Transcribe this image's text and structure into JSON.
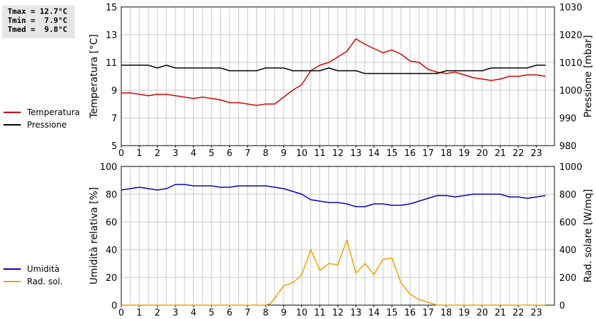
{
  "stats": {
    "tmax": "Tmax = 12.7°C",
    "tmin": "Tmin =  7.9°C",
    "tmed": "Tmed =  9.8°C"
  },
  "colors": {
    "temperatura": "#d40000",
    "pressione": "#000000",
    "umidita": "#0000b4",
    "rad_sol": "#f0a000",
    "grid": "#c8c8c8"
  },
  "chart_data": [
    {
      "type": "line",
      "xlim": [
        0,
        24
      ],
      "x_ticks": [
        "0",
        "1",
        "2",
        "3",
        "4",
        "5",
        "6",
        "7",
        "8",
        "9",
        "10",
        "11",
        "12",
        "13",
        "14",
        "15",
        "16",
        "17",
        "18",
        "19",
        "20",
        "21",
        "22",
        "23"
      ],
      "ylabel_left": "Temperatura [°C]",
      "ylabel_right": "Pressione [mbar]",
      "ylim_left": [
        5,
        15
      ],
      "ylim_right": [
        980,
        1030
      ],
      "yticks_left": [
        "5",
        "7",
        "9",
        "11",
        "13",
        "15"
      ],
      "yticks_right": [
        "980",
        "990",
        "1000",
        "1010",
        "1020",
        "1030"
      ],
      "grid": true,
      "legend_position": "left",
      "series": [
        {
          "name": "Temperatura",
          "axis": "left",
          "x": [
            0,
            0.5,
            1,
            1.5,
            2,
            2.5,
            3,
            3.5,
            4,
            4.5,
            5,
            5.5,
            6,
            6.5,
            7,
            7.5,
            8,
            8.5,
            9,
            9.5,
            10,
            10.5,
            11,
            11.5,
            12,
            12.5,
            13,
            13.5,
            14,
            14.5,
            15,
            15.5,
            16,
            16.5,
            17,
            17.5,
            18,
            18.5,
            19,
            19.5,
            20,
            20.5,
            21,
            21.5,
            22,
            22.5,
            23,
            23.5
          ],
          "values": [
            8.8,
            8.8,
            8.7,
            8.6,
            8.7,
            8.7,
            8.6,
            8.5,
            8.4,
            8.5,
            8.4,
            8.3,
            8.1,
            8.1,
            8.0,
            7.9,
            8.0,
            8.0,
            8.5,
            9.0,
            9.4,
            10.4,
            10.8,
            11.0,
            11.4,
            11.8,
            12.7,
            12.3,
            12.0,
            11.7,
            11.9,
            11.6,
            11.1,
            11.0,
            10.5,
            10.3,
            10.2,
            10.3,
            10.1,
            9.9,
            9.8,
            9.7,
            9.8,
            10.0,
            10.0,
            10.1,
            10.1,
            10.0
          ]
        },
        {
          "name": "Pressione",
          "axis": "right",
          "x": [
            0,
            0.5,
            1,
            1.5,
            2,
            2.5,
            3,
            3.5,
            4,
            4.5,
            5,
            5.5,
            6,
            6.5,
            7,
            7.5,
            8,
            8.5,
            9,
            9.5,
            10,
            10.5,
            11,
            11.5,
            12,
            12.5,
            13,
            13.5,
            14,
            14.5,
            15,
            15.5,
            16,
            16.5,
            17,
            17.5,
            18,
            18.5,
            19,
            19.5,
            20,
            20.5,
            21,
            21.5,
            22,
            22.5,
            23,
            23.5
          ],
          "values": [
            1009,
            1009,
            1009,
            1009,
            1008,
            1009,
            1008,
            1008,
            1008,
            1008,
            1008,
            1008,
            1007,
            1007,
            1007,
            1007,
            1008,
            1008,
            1008,
            1007,
            1007,
            1007,
            1007,
            1008,
            1007,
            1007,
            1007,
            1006,
            1006,
            1006,
            1006,
            1006,
            1006,
            1006,
            1006,
            1006,
            1007,
            1007,
            1007,
            1007,
            1007,
            1008,
            1008,
            1008,
            1008,
            1008,
            1009,
            1009
          ]
        }
      ]
    },
    {
      "type": "line",
      "xlim": [
        0,
        24
      ],
      "x_ticks": [
        "0",
        "1",
        "2",
        "3",
        "4",
        "5",
        "6",
        "7",
        "8",
        "9",
        "10",
        "11",
        "12",
        "13",
        "14",
        "15",
        "16",
        "17",
        "18",
        "19",
        "20",
        "21",
        "22",
        "23"
      ],
      "ylabel_left": "Umidità relativa [%]",
      "ylabel_right": "Rad. solare [W/mq]",
      "ylim_left": [
        0,
        100
      ],
      "ylim_right": [
        0,
        1000
      ],
      "yticks_left": [
        "0",
        "20",
        "40",
        "60",
        "80",
        "100"
      ],
      "yticks_right": [
        "0",
        "200",
        "400",
        "600",
        "800",
        "1000"
      ],
      "grid": true,
      "legend_position": "left",
      "series": [
        {
          "name": "Umidità",
          "axis": "left",
          "x": [
            0,
            0.5,
            1,
            1.5,
            2,
            2.5,
            3,
            3.5,
            4,
            4.5,
            5,
            5.5,
            6,
            6.5,
            7,
            7.5,
            8,
            8.5,
            9,
            9.5,
            10,
            10.5,
            11,
            11.5,
            12,
            12.5,
            13,
            13.5,
            14,
            14.5,
            15,
            15.5,
            16,
            16.5,
            17,
            17.5,
            18,
            18.5,
            19,
            19.5,
            20,
            20.5,
            21,
            21.5,
            22,
            22.5,
            23,
            23.5
          ],
          "values": [
            83,
            84,
            85,
            84,
            83,
            84,
            87,
            87,
            86,
            86,
            86,
            85,
            85,
            86,
            86,
            86,
            86,
            85,
            84,
            82,
            80,
            76,
            75,
            74,
            74,
            73,
            71,
            71,
            73,
            73,
            72,
            72,
            73,
            75,
            77,
            79,
            79,
            78,
            79,
            80,
            80,
            80,
            80,
            78,
            78,
            77,
            78,
            79
          ]
        },
        {
          "name": "Rad. sol.",
          "axis": "right",
          "x": [
            0,
            0.5,
            1,
            1.5,
            2,
            2.5,
            3,
            3.5,
            4,
            4.5,
            5,
            5.5,
            6,
            6.5,
            7,
            7.5,
            8,
            8.25,
            8.5,
            9,
            9.5,
            10,
            10.5,
            11,
            11.5,
            12,
            12.5,
            13,
            13.5,
            14,
            14.5,
            15,
            15.5,
            16,
            16.5,
            17,
            17.5,
            18,
            18.5,
            19,
            19.5,
            20,
            20.5,
            21,
            21.5,
            22,
            22.5,
            23,
            23.5
          ],
          "values": [
            0,
            0,
            0,
            0,
            0,
            0,
            0,
            0,
            0,
            0,
            0,
            0,
            0,
            0,
            0,
            0,
            0,
            10,
            50,
            140,
            160,
            220,
            400,
            250,
            300,
            290,
            470,
            230,
            300,
            220,
            330,
            340,
            160,
            80,
            40,
            20,
            0,
            0,
            0,
            0,
            0,
            0,
            0,
            0,
            0,
            0,
            0,
            0,
            0
          ]
        }
      ]
    }
  ]
}
